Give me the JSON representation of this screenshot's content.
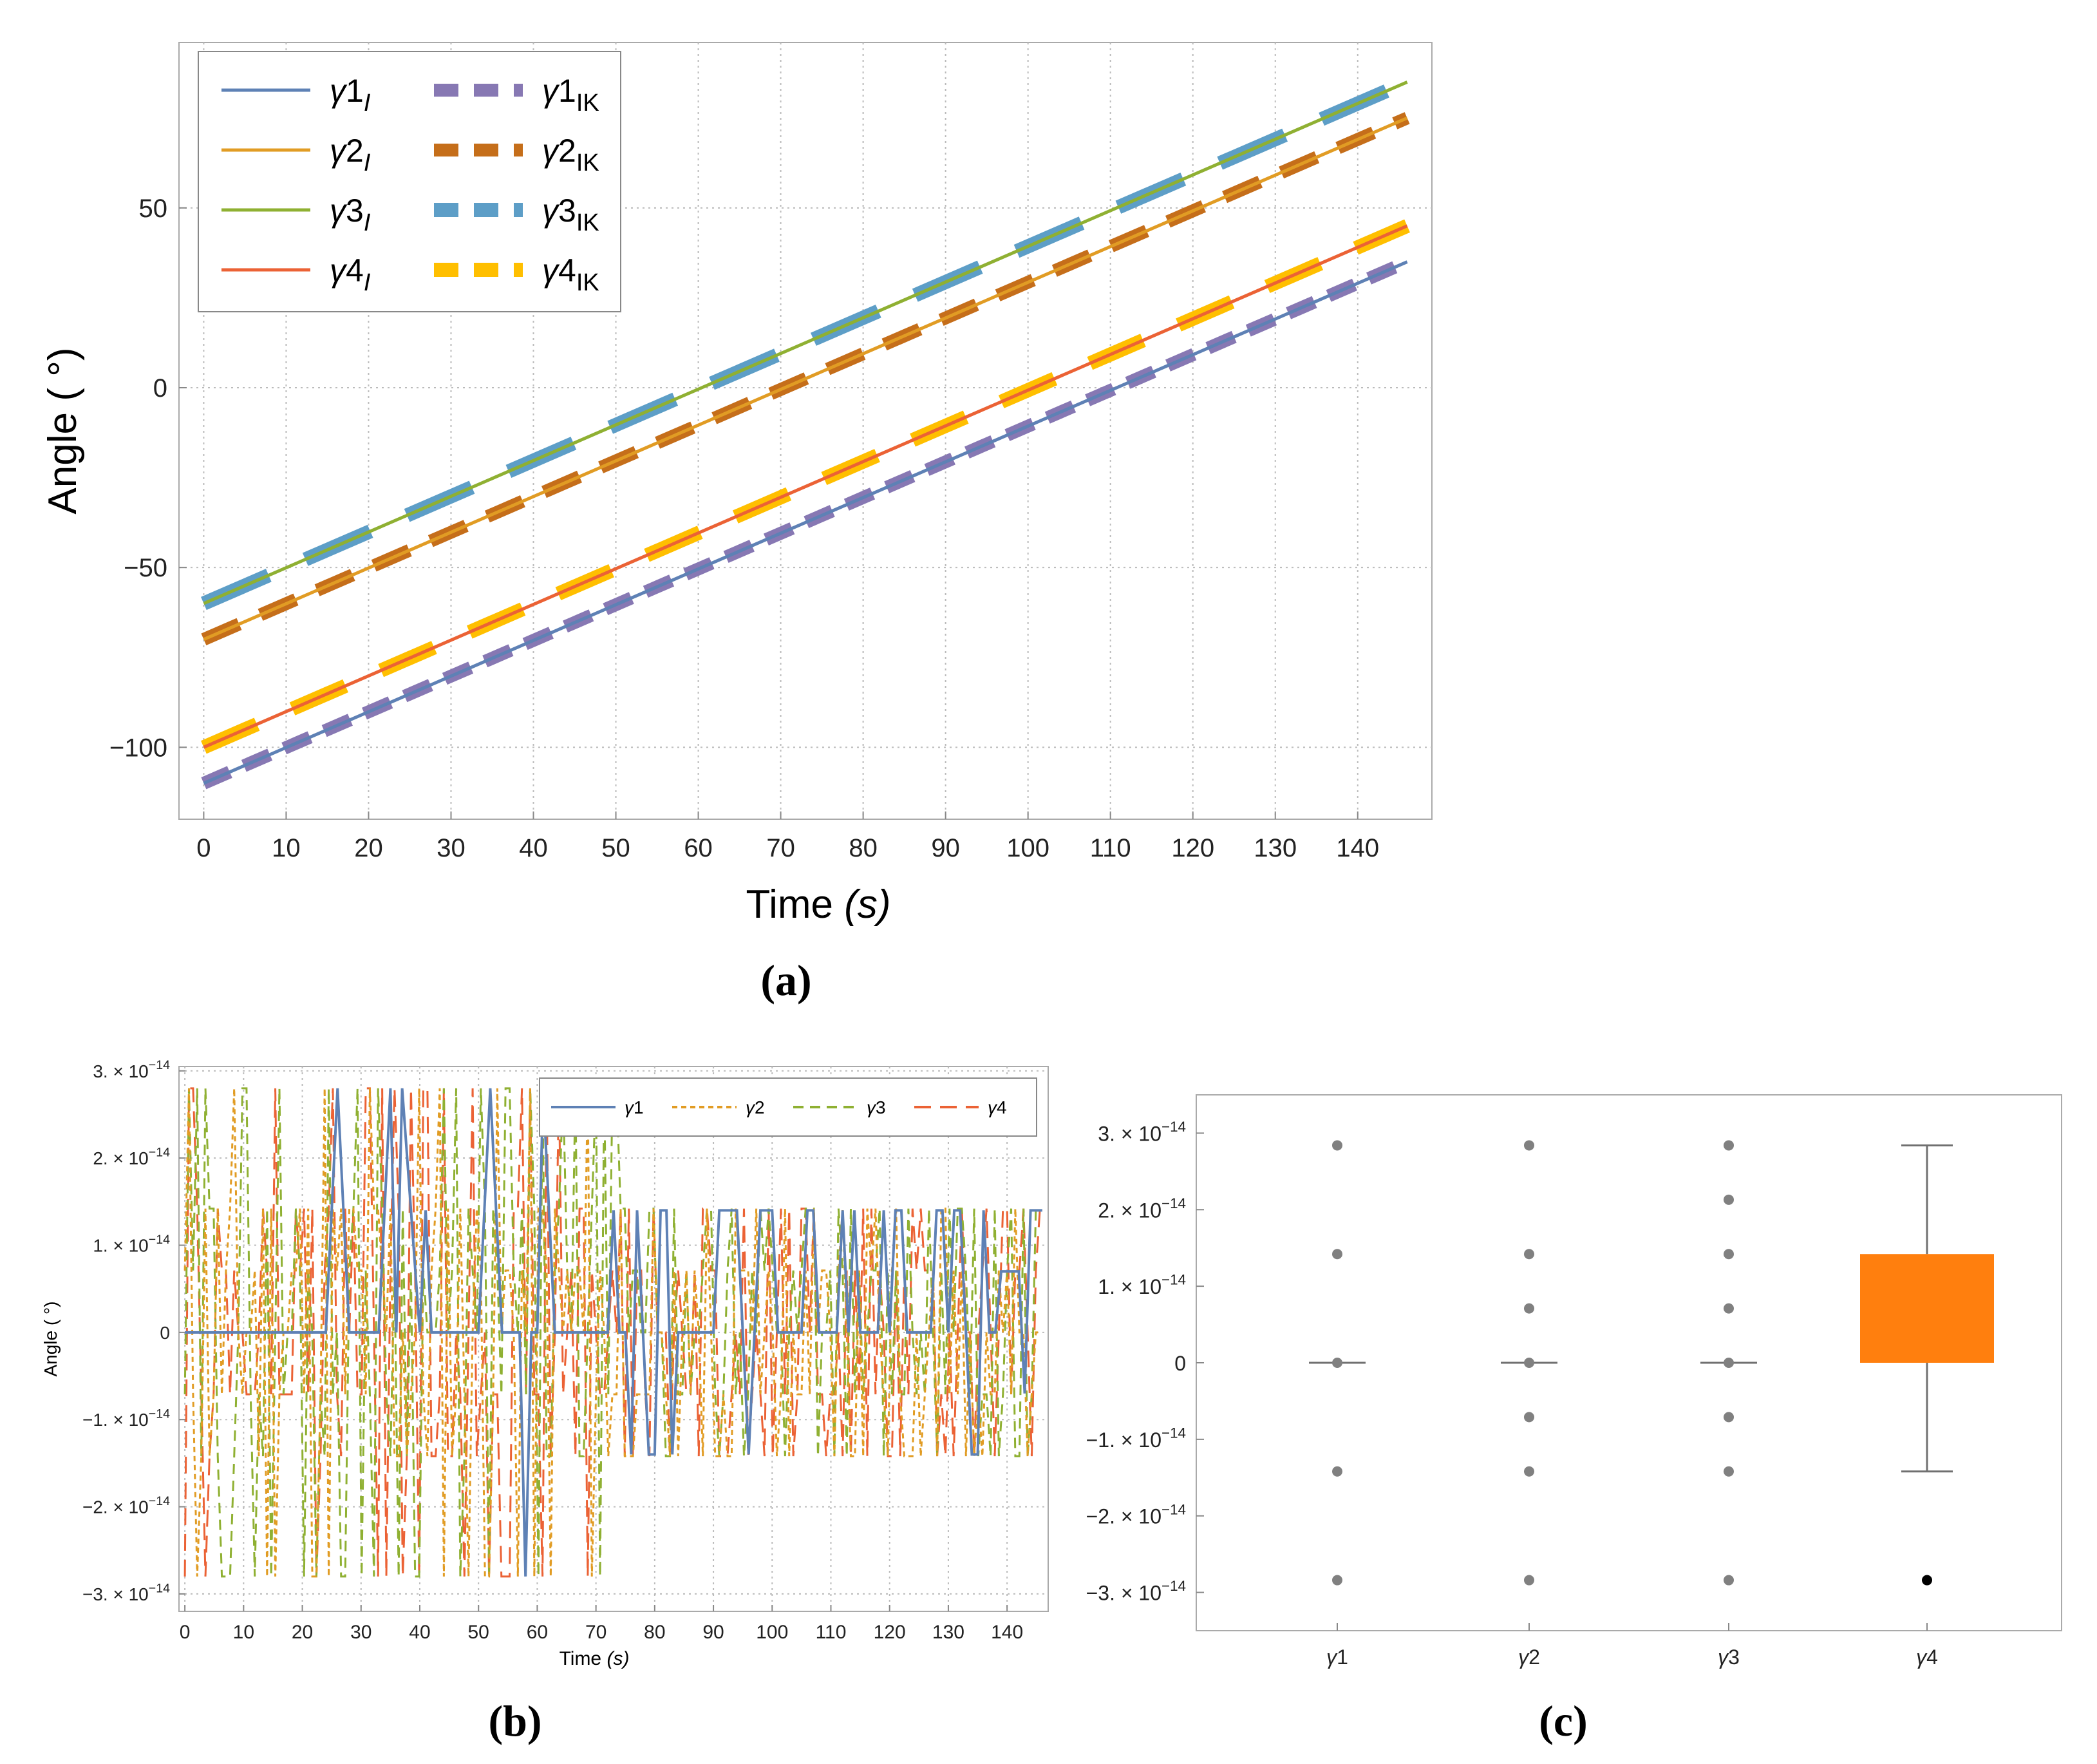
{
  "colors": {
    "blue": "#5E81B5",
    "orange": "#E19C24",
    "green": "#8FB032",
    "red": "#EB6235",
    "purple": "#8778B3",
    "brown": "#C56E1A",
    "lightblue": "#5D9EC7",
    "yellow": "#FFBF00",
    "box_orange": "#FF7F0E",
    "gray": "#808080"
  },
  "chart_data": [
    {
      "panel": "a",
      "type": "line",
      "sublabel": "(a)",
      "xlabel_main": "Time ",
      "xlabel_unit": "(s)",
      "ylabel": "Angle ( °)",
      "xlim": [
        -3,
        149
      ],
      "ylim": [
        -120,
        96
      ],
      "xticks": [
        0,
        10,
        20,
        30,
        40,
        50,
        60,
        70,
        80,
        90,
        100,
        110,
        120,
        130,
        140
      ],
      "xtick_labels": [
        "0",
        "10",
        "20",
        "30",
        "40",
        "50",
        "60",
        "70",
        "80",
        "90",
        "100",
        "110",
        "120",
        "130",
        "140"
      ],
      "yticks": [
        -100,
        -50,
        0,
        50
      ],
      "ytick_labels": [
        "−100",
        "−50",
        "0",
        "50"
      ],
      "grid": true,
      "legend_position": "top-left",
      "series": [
        {
          "name": "γ1",
          "sub": "I",
          "color_key": "blue",
          "style": "solid",
          "x": [
            0,
            146
          ],
          "y": [
            -110,
            35
          ]
        },
        {
          "name": "γ2",
          "sub": "I",
          "color_key": "orange",
          "style": "solid",
          "x": [
            0,
            146
          ],
          "y": [
            -70,
            75
          ]
        },
        {
          "name": "γ3",
          "sub": "I",
          "color_key": "green",
          "style": "solid",
          "x": [
            0,
            146
          ],
          "y": [
            -60,
            85
          ]
        },
        {
          "name": "γ4",
          "sub": "I",
          "color_key": "red",
          "style": "solid",
          "x": [
            0,
            146
          ],
          "y": [
            -100,
            45
          ]
        },
        {
          "name": "γ1",
          "sub": "IK",
          "color_key": "purple",
          "style": "dash",
          "x": [
            0,
            146
          ],
          "y": [
            -110,
            35
          ]
        },
        {
          "name": "γ2",
          "sub": "IK",
          "color_key": "brown",
          "style": "longdash",
          "x": [
            0,
            146
          ],
          "y": [
            -70,
            75
          ]
        },
        {
          "name": "γ3",
          "sub": "IK",
          "color_key": "lightblue",
          "style": "longdash2",
          "x": [
            0,
            146
          ],
          "y": [
            -60,
            85
          ]
        },
        {
          "name": "γ4",
          "sub": "IK",
          "color_key": "yellow",
          "style": "dashdot",
          "x": [
            0,
            146
          ],
          "y": [
            -100,
            45
          ]
        }
      ]
    },
    {
      "panel": "b",
      "type": "line",
      "sublabel": "(b)",
      "xlabel_main": "Time ",
      "xlabel_unit": "(s)",
      "ylabel": "Angle ( °)",
      "xlim": [
        -1,
        147
      ],
      "ylim": [
        -3.2e-14,
        3.05e-14
      ],
      "xticks": [
        0,
        10,
        20,
        30,
        40,
        50,
        60,
        70,
        80,
        90,
        100,
        110,
        120,
        130,
        140
      ],
      "xtick_labels": [
        "0",
        "10",
        "20",
        "30",
        "40",
        "50",
        "60",
        "70",
        "80",
        "90",
        "100",
        "110",
        "120",
        "130",
        "140"
      ],
      "yticks": [
        -3e-14,
        -2e-14,
        -1e-14,
        0,
        1e-14,
        2e-14,
        3e-14
      ],
      "ytick_labels": [
        {
          "m": "−3.",
          "e": "−14"
        },
        {
          "m": "−2.",
          "e": "−14"
        },
        {
          "m": "−1.",
          "e": "−14"
        },
        {
          "m": "0",
          "e": ""
        },
        {
          "m": "1.",
          "e": "−14"
        },
        {
          "m": "2.",
          "e": "−14"
        },
        {
          "m": "3.",
          "e": "−14"
        }
      ],
      "grid": true,
      "legend_position": "top-right",
      "series": [
        {
          "name": "γ1",
          "color_key": "blue",
          "style": "solid",
          "x": [
            0,
            24,
            25,
            26,
            27,
            28,
            33,
            34,
            35,
            36,
            37,
            40,
            41,
            42,
            43,
            50,
            51,
            52,
            53,
            54,
            57,
            58,
            59,
            60,
            61,
            62,
            63,
            64,
            72,
            73,
            74,
            75,
            76,
            77,
            78,
            79,
            80,
            81,
            82,
            83,
            84,
            85,
            90,
            91,
            92,
            93,
            94,
            95,
            96,
            97,
            98,
            99,
            100,
            101,
            102,
            104,
            105,
            106,
            107,
            108,
            109,
            110,
            111,
            112,
            113,
            114,
            115,
            116,
            117,
            118,
            119,
            120,
            121,
            122,
            123,
            124,
            125,
            126,
            127,
            128,
            129,
            130,
            131,
            132,
            133,
            134,
            135,
            136,
            137,
            138,
            139,
            140,
            141,
            142,
            143,
            144,
            145,
            146
          ],
          "y": [
            0,
            0,
            1.4e-14,
            2.8e-14,
            1.4e-14,
            0,
            0,
            1.4e-14,
            2.8e-14,
            0,
            2.8e-14,
            0,
            1.4e-14,
            0,
            0,
            0,
            1.4e-14,
            2.8e-14,
            1.4e-14,
            0,
            0,
            -2.8e-14,
            0,
            0,
            2.8e-14,
            1.4e-14,
            0,
            0,
            0,
            1.4e-14,
            0,
            0,
            -1.4e-14,
            1.4e-14,
            0,
            -1.4e-14,
            -1.4e-14,
            1.4e-14,
            1.4e-14,
            -1.4e-14,
            0,
            0,
            0,
            1.4e-14,
            1.4e-14,
            1.4e-14,
            1.4e-14,
            0,
            -1.4e-14,
            0,
            1.4e-14,
            1.4e-14,
            1.4e-14,
            0,
            0,
            0,
            0,
            1.4e-14,
            1.4e-14,
            0,
            0,
            0,
            0,
            1.4e-14,
            0,
            1.4e-14,
            0,
            0,
            0,
            0,
            1.4e-14,
            0,
            1.4e-14,
            1.4e-14,
            0,
            0,
            0,
            0,
            0,
            1.4e-14,
            1.4e-14,
            0,
            1.4e-14,
            1.4e-14,
            0,
            -1.4e-14,
            -1.4e-14,
            1.4e-14,
            0,
            0,
            7e-15,
            7e-15,
            7e-15,
            7e-15,
            -7e-15,
            1.4e-14,
            1.4e-14,
            1.4e-14
          ]
        },
        {
          "name": "γ2",
          "color_key": "orange",
          "style": "dash",
          "x": [],
          "y": []
        },
        {
          "name": "γ3",
          "color_key": "green",
          "style": "longdash",
          "x": [],
          "y": []
        },
        {
          "name": "γ4",
          "color_key": "red",
          "style": "longerdash",
          "x": [],
          "y": []
        }
      ]
    },
    {
      "panel": "c",
      "type": "box",
      "sublabel": "(c)",
      "ylim": [
        -3.5e-14,
        3.5e-14
      ],
      "yticks": [
        -3e-14,
        -2e-14,
        -1e-14,
        0,
        1e-14,
        2e-14,
        3e-14
      ],
      "ytick_labels": [
        {
          "m": "−3.",
          "e": "−14"
        },
        {
          "m": "−2.",
          "e": "−14"
        },
        {
          "m": "−1.",
          "e": "−14"
        },
        {
          "m": "0",
          "e": ""
        },
        {
          "m": "1.",
          "e": "−14"
        },
        {
          "m": "2.",
          "e": "−14"
        },
        {
          "m": "3.",
          "e": "−14"
        }
      ],
      "categories": [
        "γ1",
        "γ2",
        "γ3",
        "γ4"
      ],
      "boxes": [
        {
          "name": "γ1",
          "median": 0,
          "q1": 0,
          "q3": 0,
          "outliers": [
            2.84e-14,
            1.42e-14,
            -1.42e-14,
            -2.84e-14
          ]
        },
        {
          "name": "γ2",
          "median": 0,
          "q1": 0,
          "q3": 0,
          "outliers": [
            2.84e-14,
            1.42e-14,
            7.1e-15,
            -7.1e-15,
            -1.42e-14,
            -2.84e-14
          ]
        },
        {
          "name": "γ3",
          "median": 0,
          "q1": 0,
          "q3": 0,
          "outliers": [
            2.84e-14,
            2.13e-14,
            1.42e-14,
            7.1e-15,
            -7.1e-15,
            -1.42e-14,
            -2.84e-14
          ]
        },
        {
          "name": "γ4",
          "median": 0,
          "q1": 0,
          "q3": 1.42e-14,
          "whisker_low": -1.42e-14,
          "whisker_high": 2.84e-14,
          "outliers": [
            -2.84e-14
          ]
        }
      ]
    }
  ]
}
